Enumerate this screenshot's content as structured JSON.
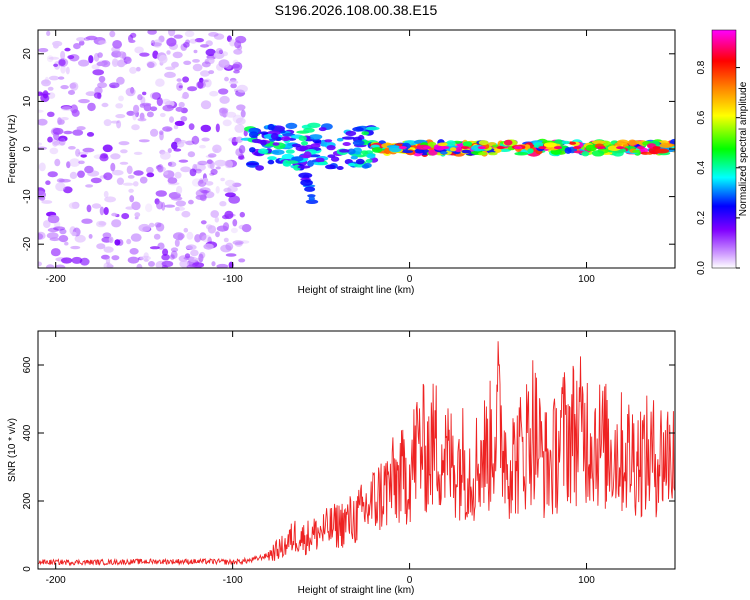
{
  "title": "S196.2026.108.00.38.E15",
  "chart_data": [
    {
      "type": "heatmap",
      "name": "spectrogram",
      "xlabel": "Height of straight line (km)",
      "ylabel": "Frequency (Hz)",
      "xlim": [
        -210,
        150
      ],
      "ylim": [
        -25,
        25
      ],
      "xticks": [
        -200,
        -100,
        0,
        100
      ],
      "yticks": [
        -20,
        -10,
        0,
        10,
        20
      ],
      "colorbar": {
        "label": "Normalized spectral amplitude",
        "range": [
          0,
          0.95
        ],
        "ticks": [
          0.0,
          0.2,
          0.4,
          0.6,
          0.8
        ],
        "tick_labels": [
          "0.0",
          "0.2",
          "0.4",
          "0.6",
          "0.8"
        ],
        "colors": [
          "#ffffff",
          "#cf9cff",
          "#8000ff",
          "#0000ff",
          "#00ffff",
          "#00ff00",
          "#ffff00",
          "#ff8000",
          "#ff0000",
          "#ff00ff"
        ]
      },
      "regions": [
        {
          "x": [
            -210,
            -92
          ],
          "y": [
            -25,
            25
          ],
          "amplitude": [
            0.05,
            0.22
          ],
          "description": "scattered noise"
        },
        {
          "x": [
            -92,
            -20
          ],
          "y": [
            -4,
            5
          ],
          "amplitude": [
            0.2,
            0.5
          ]
        },
        {
          "x": [
            -60,
            -55
          ],
          "y": [
            -11,
            -4
          ],
          "amplitude": [
            0.2,
            0.4
          ]
        },
        {
          "x": [
            -20,
            150
          ],
          "y": [
            -1,
            1.5
          ],
          "amplitude": [
            0.3,
            0.95
          ]
        }
      ]
    },
    {
      "type": "line",
      "name": "snr",
      "xlabel": "Height of straight line (km)",
      "ylabel": "SNR (10 * v/v)",
      "xlim": [
        -210,
        150
      ],
      "ylim": [
        0,
        700
      ],
      "xticks": [
        -200,
        -100,
        0,
        100
      ],
      "yticks": [
        0,
        200,
        400,
        600
      ],
      "color": "#ee2222",
      "series": [
        {
          "name": "SNR",
          "x": [
            -210,
            -190,
            -170,
            -150,
            -130,
            -110,
            -100,
            -90,
            -80,
            -70,
            -65,
            -60,
            -50,
            -40,
            -30,
            -20,
            -10,
            0,
            5,
            10,
            15,
            20,
            25,
            30,
            35,
            40,
            45,
            50,
            55,
            60,
            65,
            70,
            75,
            80,
            85,
            90,
            95,
            100,
            110,
            120,
            130,
            140,
            150
          ],
          "values": [
            20,
            20,
            20,
            22,
            22,
            22,
            20,
            25,
            40,
            70,
            100,
            90,
            110,
            130,
            150,
            200,
            250,
            280,
            370,
            340,
            370,
            330,
            310,
            320,
            280,
            330,
            350,
            450,
            320,
            320,
            360,
            430,
            320,
            300,
            380,
            400,
            410,
            400,
            360,
            340,
            330,
            330,
            340
          ]
        }
      ]
    }
  ]
}
